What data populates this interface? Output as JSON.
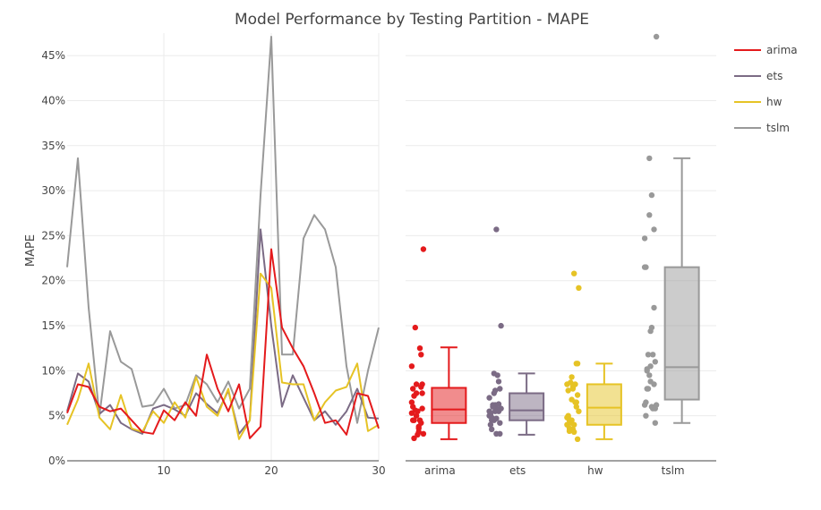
{
  "chart_data": {
    "type": "line+box",
    "title": "Model Performance by Testing Partition - MAPE",
    "ylabel": "MAPE",
    "xlabel": "",
    "ylim": [
      0,
      47.5
    ],
    "yticks": [
      0,
      5,
      10,
      15,
      20,
      25,
      30,
      35,
      40,
      45
    ],
    "ytick_labels": [
      "0%",
      "5%",
      "10%",
      "15%",
      "20%",
      "25%",
      "30%",
      "35%",
      "40%",
      "45%"
    ],
    "x_line": [
      1,
      2,
      3,
      4,
      5,
      6,
      7,
      8,
      9,
      10,
      11,
      12,
      13,
      14,
      15,
      16,
      17,
      18,
      19,
      20,
      21,
      22,
      23,
      24,
      25,
      26,
      27,
      28,
      29,
      30
    ],
    "xlim_line": [
      1,
      30
    ],
    "xticks_line": [
      10,
      20,
      30
    ],
    "xtick_labels_line": [
      "10",
      "20",
      "30"
    ],
    "legend": [
      "arima",
      "ets",
      "hw",
      "tslm"
    ],
    "series": [
      {
        "name": "arima",
        "color": "#e41a1c",
        "values": [
          5.3,
          8.5,
          8.2,
          6.0,
          5.5,
          5.8,
          4.5,
          3.2,
          3.0,
          5.6,
          4.5,
          6.5,
          5.0,
          11.8,
          8.0,
          5.5,
          8.5,
          2.5,
          3.8,
          23.5,
          14.8,
          12.5,
          10.5,
          7.5,
          4.2,
          4.5,
          2.9,
          7.5,
          7.2,
          3.6
        ]
      },
      {
        "name": "ets",
        "color": "#7b6b85",
        "values": [
          5.5,
          9.7,
          8.8,
          5.2,
          6.2,
          4.2,
          3.5,
          3.0,
          5.8,
          6.2,
          5.7,
          5.0,
          7.5,
          6.3,
          5.3,
          7.8,
          3.0,
          4.5,
          25.7,
          15.0,
          6.0,
          9.5,
          7.0,
          4.5,
          5.5,
          4.0,
          5.5,
          8.0,
          4.8,
          4.7
        ]
      },
      {
        "name": "hw",
        "color": "#e6c325",
        "values": [
          4.0,
          6.8,
          10.8,
          4.8,
          3.5,
          7.3,
          3.6,
          3.2,
          5.5,
          4.2,
          6.5,
          4.8,
          9.3,
          6.0,
          5.0,
          8.0,
          2.4,
          4.5,
          20.8,
          19.2,
          8.7,
          8.5,
          8.5,
          4.5,
          6.5,
          7.8,
          8.2,
          10.8,
          3.3,
          4.0
        ]
      },
      {
        "name": "tslm",
        "color": "#999999",
        "values": [
          21.5,
          33.6,
          17.0,
          5.0,
          14.4,
          11.0,
          10.2,
          6.0,
          6.2,
          8.0,
          5.8,
          6.2,
          9.5,
          8.5,
          6.5,
          8.8,
          5.8,
          8.0,
          29.5,
          47.1,
          11.8,
          11.8,
          24.7,
          27.3,
          25.7,
          21.5,
          10.5,
          4.2,
          10.0,
          14.8
        ]
      }
    ],
    "box_categories": [
      "arima",
      "ets",
      "hw",
      "tslm"
    ],
    "boxes": [
      {
        "name": "arima",
        "min": 2.4,
        "q1": 4.2,
        "median": 5.7,
        "q3": 8.1,
        "max": 12.6
      },
      {
        "name": "ets",
        "min": 2.9,
        "q1": 4.5,
        "median": 5.6,
        "q3": 7.5,
        "max": 9.7
      },
      {
        "name": "hw",
        "min": 2.4,
        "q1": 4.0,
        "median": 5.9,
        "q3": 8.5,
        "max": 10.8
      },
      {
        "name": "tslm",
        "min": 4.2,
        "q1": 6.8,
        "median": 10.4,
        "q3": 21.5,
        "max": 33.6
      }
    ]
  }
}
